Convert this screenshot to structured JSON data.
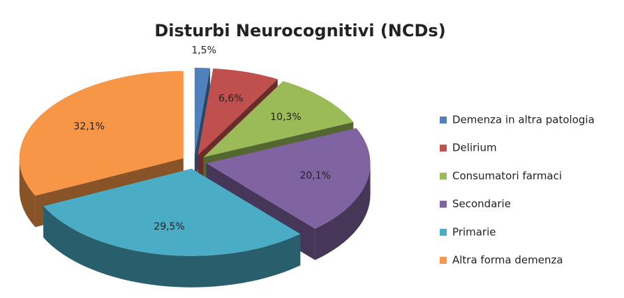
{
  "chart_data": {
    "type": "pie3d",
    "title": "Disturbi  Neurocognitivi  (NCDs)",
    "categories": [
      "Demenza in altra patologia",
      "Delirium",
      "Consumatori farmaci",
      "Secondarie",
      "Primarie",
      "Altra forma demenza"
    ],
    "values": [
      1.5,
      6.6,
      10.3,
      20.1,
      29.5,
      32.1
    ],
    "value_labels": [
      "1,5%",
      "6,6%",
      "10,3%",
      "20,1%",
      "29,5%",
      "32,1%"
    ],
    "colors": [
      "#4f81bd",
      "#c0504d",
      "#9bbb59",
      "#8064a2",
      "#4bacc6",
      "#f79646"
    ],
    "legend": "right"
  }
}
